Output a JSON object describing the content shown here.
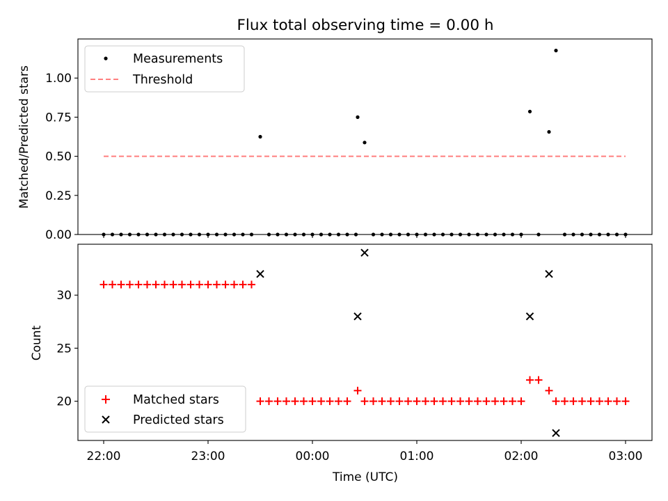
{
  "chart_data": {
    "title": "Flux total observing time = 0.00 h",
    "xlabel": "Time (UTC)",
    "x_ticks": [
      "22:00",
      "23:00",
      "00:00",
      "01:00",
      "02:00",
      "03:00"
    ],
    "panels": [
      {
        "type": "scatter",
        "ylabel": "Matched/Predicted stars",
        "ylim": [
          0,
          1.25
        ],
        "y_ticks": [
          "0.00",
          "0.25",
          "0.50",
          "0.75",
          "1.00"
        ],
        "legend_position": "upper-left",
        "legend": [
          "Measurements",
          "Threshold"
        ],
        "series": [
          {
            "name": "Measurements",
            "marker": "dot",
            "color": "#000000",
            "points": [
              [
                "22:00",
                0
              ],
              [
                "22:05",
                0
              ],
              [
                "22:10",
                0
              ],
              [
                "22:15",
                0
              ],
              [
                "22:20",
                0
              ],
              [
                "22:25",
                0
              ],
              [
                "22:30",
                0
              ],
              [
                "22:35",
                0
              ],
              [
                "22:40",
                0
              ],
              [
                "22:45",
                0
              ],
              [
                "22:50",
                0
              ],
              [
                "22:55",
                0
              ],
              [
                "23:00",
                0
              ],
              [
                "23:05",
                0
              ],
              [
                "23:10",
                0
              ],
              [
                "23:15",
                0
              ],
              [
                "23:20",
                0
              ],
              [
                "23:25",
                0
              ],
              [
                "23:30",
                0.625
              ],
              [
                "23:35",
                0
              ],
              [
                "23:40",
                0
              ],
              [
                "23:45",
                0
              ],
              [
                "23:50",
                0
              ],
              [
                "23:55",
                0
              ],
              [
                "00:00",
                0
              ],
              [
                "00:05",
                0
              ],
              [
                "00:10",
                0
              ],
              [
                "00:15",
                0
              ],
              [
                "00:20",
                0
              ],
              [
                "00:25",
                0
              ],
              [
                "00:26",
                0.75
              ],
              [
                "00:30",
                0.588
              ],
              [
                "00:35",
                0
              ],
              [
                "00:40",
                0
              ],
              [
                "00:45",
                0
              ],
              [
                "00:50",
                0
              ],
              [
                "00:55",
                0
              ],
              [
                "01:00",
                0
              ],
              [
                "01:05",
                0
              ],
              [
                "01:10",
                0
              ],
              [
                "01:15",
                0
              ],
              [
                "01:20",
                0
              ],
              [
                "01:25",
                0
              ],
              [
                "01:30",
                0
              ],
              [
                "01:35",
                0
              ],
              [
                "01:40",
                0
              ],
              [
                "01:45",
                0
              ],
              [
                "01:50",
                0
              ],
              [
                "01:55",
                0
              ],
              [
                "02:00",
                0
              ],
              [
                "02:05",
                0.786
              ],
              [
                "02:10",
                0
              ],
              [
                "02:16",
                0.656
              ],
              [
                "02:20",
                1.176
              ],
              [
                "02:25",
                0
              ],
              [
                "02:30",
                0
              ],
              [
                "02:35",
                0
              ],
              [
                "02:40",
                0
              ],
              [
                "02:45",
                0
              ],
              [
                "02:50",
                0
              ],
              [
                "02:55",
                0
              ],
              [
                "03:00",
                0
              ]
            ]
          },
          {
            "name": "Threshold",
            "style": "dashed",
            "color": "#ff7f7f",
            "points": [
              [
                "22:00",
                0.5
              ],
              [
                "03:00",
                0.5
              ]
            ]
          }
        ]
      },
      {
        "type": "scatter",
        "ylabel": "Count",
        "ylim": [
          16.3,
          34.8
        ],
        "y_ticks": [
          "20",
          "25",
          "30"
        ],
        "legend_position": "lower-left",
        "legend": [
          "Matched stars",
          "Predicted stars"
        ],
        "series": [
          {
            "name": "Matched stars",
            "marker": "plus",
            "color": "#ff0000",
            "points": [
              [
                "22:00",
                31
              ],
              [
                "22:05",
                31
              ],
              [
                "22:10",
                31
              ],
              [
                "22:15",
                31
              ],
              [
                "22:20",
                31
              ],
              [
                "22:25",
                31
              ],
              [
                "22:30",
                31
              ],
              [
                "22:35",
                31
              ],
              [
                "22:40",
                31
              ],
              [
                "22:45",
                31
              ],
              [
                "22:50",
                31
              ],
              [
                "22:55",
                31
              ],
              [
                "23:00",
                31
              ],
              [
                "23:05",
                31
              ],
              [
                "23:10",
                31
              ],
              [
                "23:15",
                31
              ],
              [
                "23:20",
                31
              ],
              [
                "23:25",
                31
              ],
              [
                "23:30",
                20
              ],
              [
                "23:35",
                20
              ],
              [
                "23:40",
                20
              ],
              [
                "23:45",
                20
              ],
              [
                "23:50",
                20
              ],
              [
                "23:55",
                20
              ],
              [
                "00:00",
                20
              ],
              [
                "00:05",
                20
              ],
              [
                "00:10",
                20
              ],
              [
                "00:15",
                20
              ],
              [
                "00:20",
                20
              ],
              [
                "00:26",
                21
              ],
              [
                "00:30",
                20
              ],
              [
                "00:35",
                20
              ],
              [
                "00:40",
                20
              ],
              [
                "00:45",
                20
              ],
              [
                "00:50",
                20
              ],
              [
                "00:55",
                20
              ],
              [
                "01:00",
                20
              ],
              [
                "01:05",
                20
              ],
              [
                "01:10",
                20
              ],
              [
                "01:15",
                20
              ],
              [
                "01:20",
                20
              ],
              [
                "01:25",
                20
              ],
              [
                "01:30",
                20
              ],
              [
                "01:35",
                20
              ],
              [
                "01:40",
                20
              ],
              [
                "01:45",
                20
              ],
              [
                "01:50",
                20
              ],
              [
                "01:55",
                20
              ],
              [
                "02:00",
                20
              ],
              [
                "02:05",
                22
              ],
              [
                "02:10",
                22
              ],
              [
                "02:16",
                21
              ],
              [
                "02:20",
                20
              ],
              [
                "02:25",
                20
              ],
              [
                "02:30",
                20
              ],
              [
                "02:35",
                20
              ],
              [
                "02:40",
                20
              ],
              [
                "02:45",
                20
              ],
              [
                "02:50",
                20
              ],
              [
                "02:55",
                20
              ],
              [
                "03:00",
                20
              ]
            ]
          },
          {
            "name": "Predicted stars",
            "marker": "x",
            "color": "#000000",
            "points": [
              [
                "23:30",
                32
              ],
              [
                "00:26",
                28
              ],
              [
                "00:30",
                34
              ],
              [
                "02:05",
                28
              ],
              [
                "02:16",
                32
              ],
              [
                "02:20",
                17
              ]
            ]
          }
        ]
      }
    ]
  }
}
